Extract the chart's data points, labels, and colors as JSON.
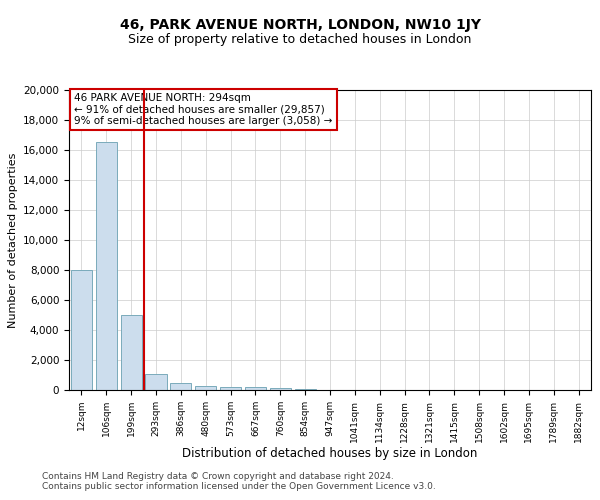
{
  "title": "46, PARK AVENUE NORTH, LONDON, NW10 1JY",
  "subtitle": "Size of property relative to detached houses in London",
  "xlabel": "Distribution of detached houses by size in London",
  "ylabel": "Number of detached properties",
  "annotation_line1": "46 PARK AVENUE NORTH: 294sqm",
  "annotation_line2": "← 91% of detached houses are smaller (29,857)",
  "annotation_line3": "9% of semi-detached houses are larger (3,058) →",
  "bar_color": "#ccdded",
  "bar_edge_color": "#7aaabb",
  "vline_color": "#cc0000",
  "annotation_box_edgecolor": "#cc0000",
  "background_color": "#ffffff",
  "grid_color": "#cccccc",
  "footer_line1": "Contains HM Land Registry data © Crown copyright and database right 2024.",
  "footer_line2": "Contains public sector information licensed under the Open Government Licence v3.0.",
  "categories": [
    "12sqm",
    "106sqm",
    "199sqm",
    "293sqm",
    "386sqm",
    "480sqm",
    "573sqm",
    "667sqm",
    "760sqm",
    "854sqm",
    "947sqm",
    "1041sqm",
    "1134sqm",
    "1228sqm",
    "1321sqm",
    "1415sqm",
    "1508sqm",
    "1602sqm",
    "1695sqm",
    "1789sqm",
    "1882sqm"
  ],
  "values": [
    8000,
    16500,
    5000,
    1050,
    500,
    280,
    200,
    170,
    120,
    70,
    0,
    0,
    0,
    0,
    0,
    0,
    0,
    0,
    0,
    0,
    0
  ],
  "vline_index": 3,
  "ylim": [
    0,
    20000
  ],
  "yticks": [
    0,
    2000,
    4000,
    6000,
    8000,
    10000,
    12000,
    14000,
    16000,
    18000,
    20000
  ],
  "title_fontsize": 10,
  "subtitle_fontsize": 9,
  "ylabel_fontsize": 8,
  "xlabel_fontsize": 8.5,
  "tick_fontsize": 7.5,
  "xtick_fontsize": 6.5,
  "footer_fontsize": 6.5,
  "annot_fontsize": 7.5
}
